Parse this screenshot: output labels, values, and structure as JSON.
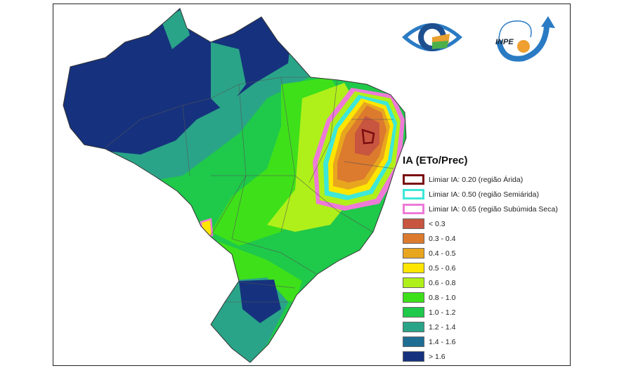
{
  "legend": {
    "title": "IA (ETo/Prec)",
    "thresholds": [
      {
        "label": "Limiar IA: 0.20 (região Árida)",
        "color": "#7a0e12"
      },
      {
        "label": "Limiar IA: 0.50 (região Semiárida)",
        "color": "#3de8d8"
      },
      {
        "label": "Limiar IA: 0.65 (região Subúmida Seca)",
        "color": "#ee7ad8"
      }
    ],
    "classes": [
      {
        "label": "< 0.3",
        "color": "#c8553f"
      },
      {
        "label": "0.3 - 0.4",
        "color": "#dc7a2e"
      },
      {
        "label": "0.4 - 0.5",
        "color": "#e8a61f"
      },
      {
        "label": "0.5 - 0.6",
        "color": "#ffe600"
      },
      {
        "label": "0.6 - 0.8",
        "color": "#b0f01a"
      },
      {
        "label": "0.8 - 1.0",
        "color": "#3ee01a"
      },
      {
        "label": "1.0 - 1.2",
        "color": "#1fc94a"
      },
      {
        "label": "1.2 - 1.4",
        "color": "#2aa488"
      },
      {
        "label": "1.4 - 1.6",
        "color": "#1e6e94"
      },
      {
        "label": "> 1.6",
        "color": "#16327e"
      }
    ]
  },
  "logos": {
    "inpe_text": "INPE"
  }
}
